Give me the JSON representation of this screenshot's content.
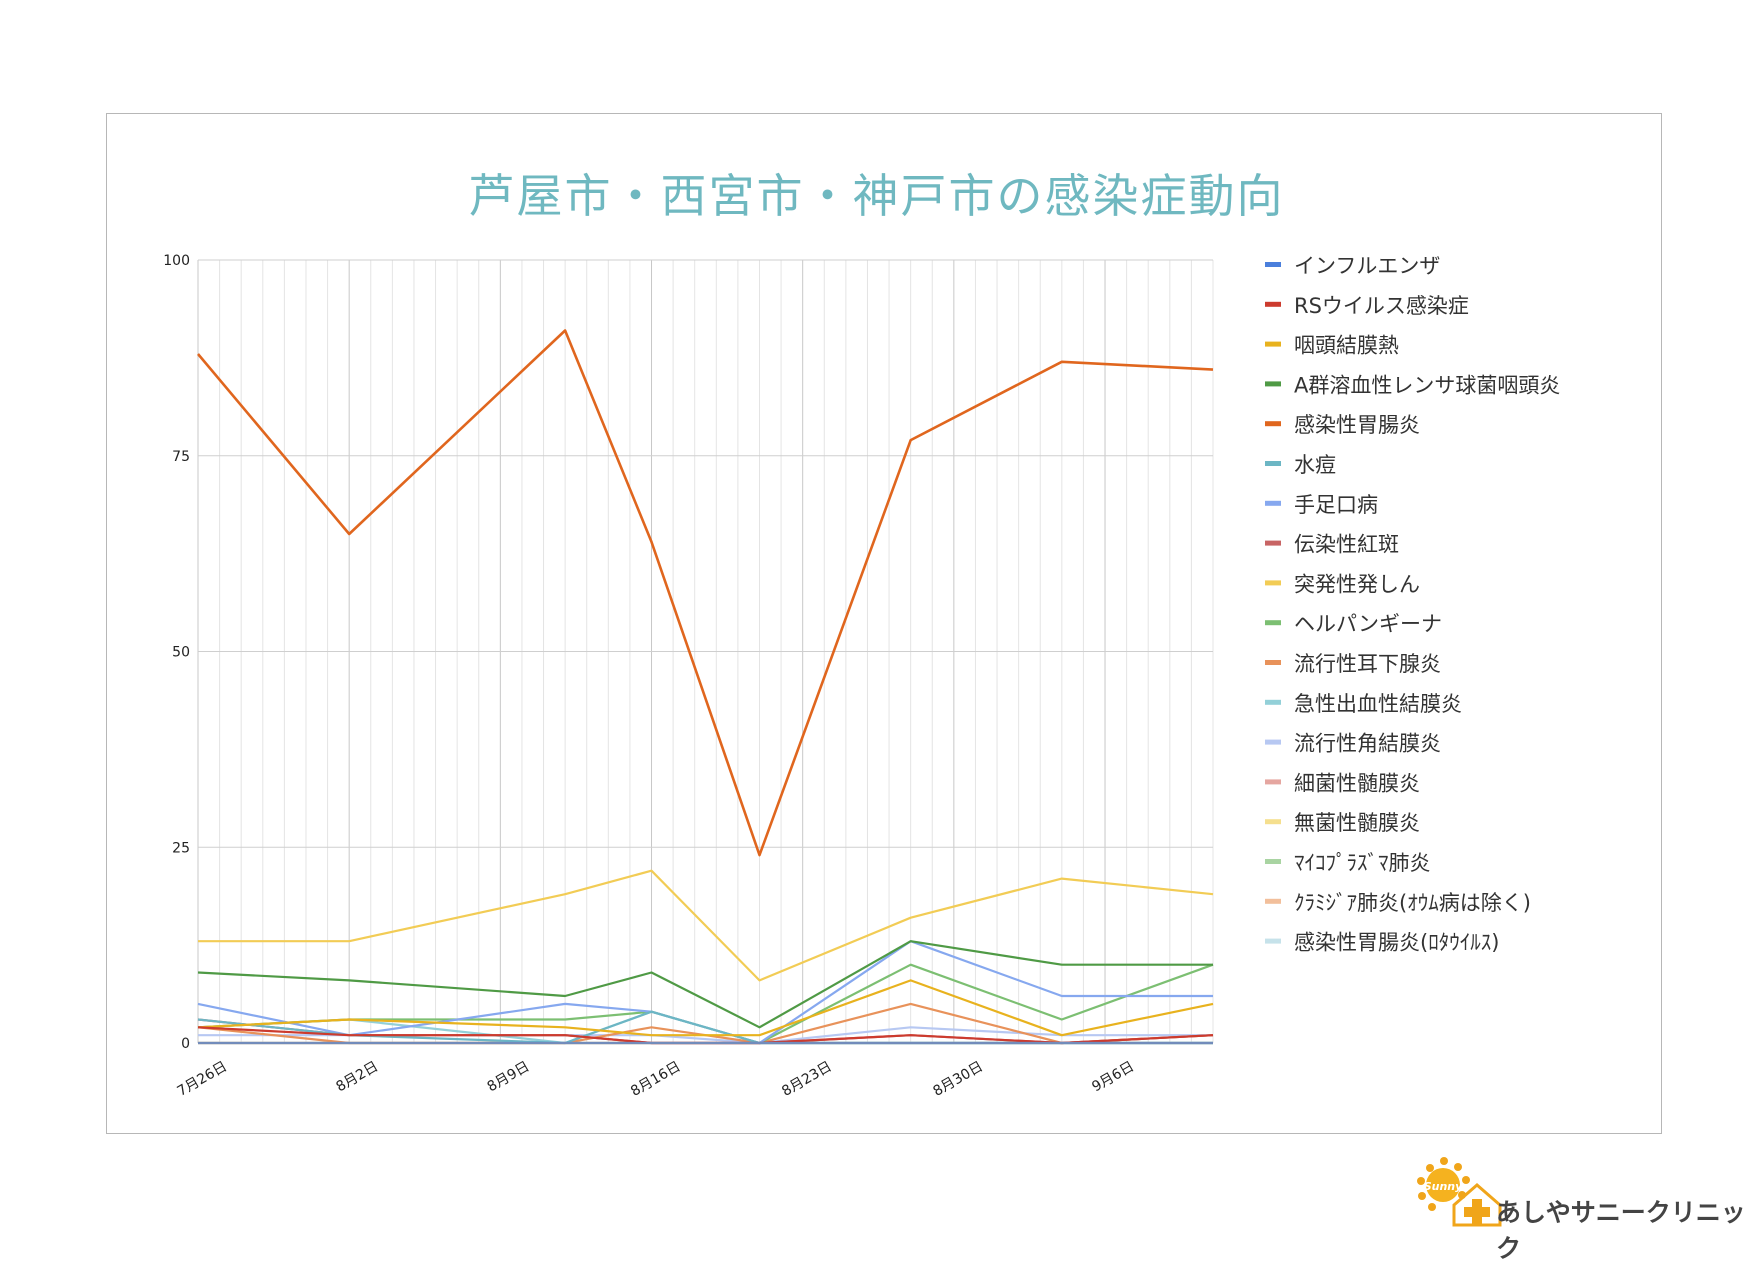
{
  "chart_data": {
    "type": "line",
    "title": "芦屋市・西宮市・神戸市の感染症動向",
    "xlabel": "",
    "ylabel": "",
    "ylim": [
      0,
      100
    ],
    "y_ticks": [
      0,
      25,
      50,
      75,
      100
    ],
    "x_tick_labels": [
      "7月26日",
      "8月2日",
      "8月9日",
      "8月16日",
      "8月23日",
      "8月30日",
      "9月6日"
    ],
    "x_tick_dates": [
      "2021-07-26",
      "2021-08-02",
      "2021-08-09",
      "2021-08-16",
      "2021-08-23",
      "2021-08-30",
      "2021-09-06"
    ],
    "x": [
      "2021-07-26",
      "2021-08-02",
      "2021-08-12",
      "2021-08-16",
      "2021-08-21",
      "2021-08-28",
      "2021-09-04",
      "2021-09-11"
    ],
    "x_range": [
      "2021-07-26",
      "2021-09-11"
    ],
    "grid": true,
    "legend": "right",
    "series": [
      {
        "name": "インフルエンザ",
        "color": "#4a7fdc",
        "values": [
          0,
          0,
          0,
          0,
          0,
          0,
          0,
          0
        ]
      },
      {
        "name": "RSウイルス感染症",
        "color": "#cc3b2e",
        "values": [
          2,
          1,
          1,
          0,
          0,
          1,
          0,
          1
        ]
      },
      {
        "name": "咽頭結膜熱",
        "color": "#e8b21e",
        "values": [
          2,
          3,
          2,
          1,
          1,
          8,
          1,
          5
        ]
      },
      {
        "name": "A群溶血性レンサ球菌咽頭炎",
        "color": "#4f9a45",
        "values": [
          9,
          8,
          6,
          9,
          2,
          13,
          10,
          10
        ]
      },
      {
        "name": "感染性胃腸炎",
        "color": "#e0661e",
        "values": [
          88,
          65,
          91,
          64,
          24,
          77,
          87,
          86
        ]
      },
      {
        "name": "水痘",
        "color": "#6cb6c4",
        "values": [
          3,
          1,
          0,
          4,
          0,
          0,
          0,
          0
        ]
      },
      {
        "name": "手足口病",
        "color": "#86a8ef",
        "values": [
          5,
          1,
          5,
          4,
          0,
          13,
          6,
          6
        ]
      },
      {
        "name": "伝染性紅斑",
        "color": "#c86464",
        "values": [
          3,
          1,
          1,
          0,
          0,
          1,
          0,
          1
        ]
      },
      {
        "name": "突発性発しん",
        "color": "#f2cc55",
        "values": [
          13,
          13,
          19,
          22,
          8,
          16,
          21,
          19
        ]
      },
      {
        "name": "ヘルパンギーナ",
        "color": "#7cbf72",
        "values": [
          2,
          3,
          3,
          4,
          0,
          10,
          3,
          10
        ]
      },
      {
        "name": "流行性耳下腺炎",
        "color": "#e8925a",
        "values": [
          2,
          0,
          0,
          2,
          0,
          5,
          0,
          1
        ]
      },
      {
        "name": "急性出血性結膜炎",
        "color": "#93d0d8",
        "values": [
          2,
          3,
          0,
          4,
          0,
          0,
          0,
          0
        ]
      },
      {
        "name": "流行性角結膜炎",
        "color": "#b7c8f2",
        "values": [
          1,
          1,
          1,
          1,
          0,
          2,
          1,
          1
        ]
      },
      {
        "name": "細菌性髄膜炎",
        "color": "#e5a6a0",
        "values": [
          0,
          0,
          0,
          0,
          0,
          0,
          0,
          0
        ]
      },
      {
        "name": "無菌性髄膜炎",
        "color": "#f5df8e",
        "values": [
          0,
          0,
          0,
          0,
          0,
          0,
          0,
          0
        ]
      },
      {
        "name": "ﾏｲｺﾌﾟﾗｽﾞﾏ肺炎",
        "color": "#a9d4a2",
        "values": [
          0,
          0,
          0,
          0,
          0,
          0,
          0,
          0
        ]
      },
      {
        "name": "ｸﾗﾐｼﾞｱ肺炎(ｵｳﾑ病は除く)",
        "color": "#f2bf9b",
        "values": [
          0,
          0,
          0,
          0,
          0,
          0,
          0,
          0
        ]
      },
      {
        "name": "感染性胃腸炎(ﾛﾀｳｲﾙｽ)",
        "color": "#c6e2ea",
        "values": [
          0,
          0,
          0,
          0,
          0,
          0,
          0,
          0
        ]
      }
    ]
  },
  "footer": {
    "clinic_name": "あしやサニークリニック",
    "logo_icon": "sun-house-logo-icon",
    "logo_text": "Sunny"
  }
}
